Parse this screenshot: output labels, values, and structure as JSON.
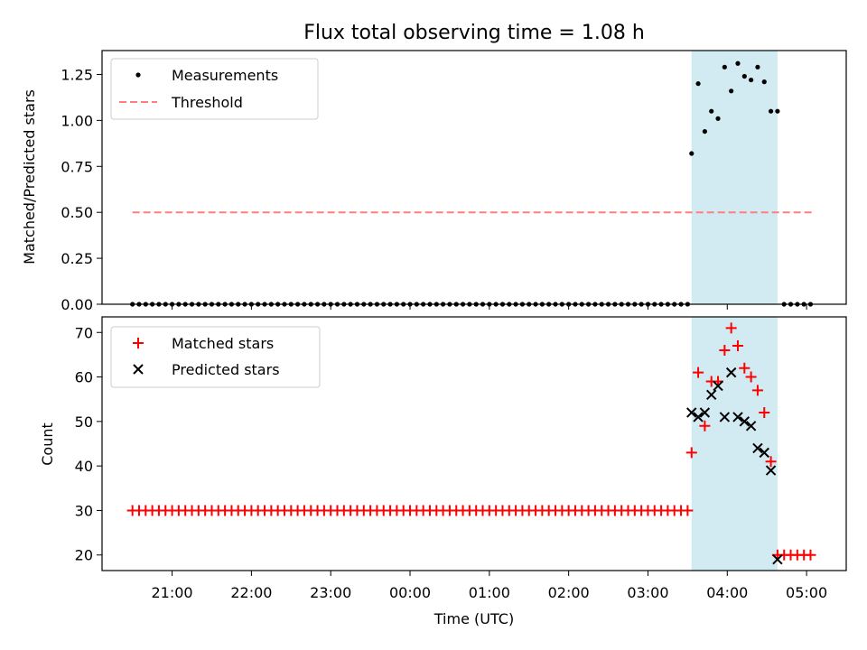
{
  "chart_data": [
    {
      "type": "scatter",
      "title": "Flux total observing time = 1.08 h",
      "xlabel": "",
      "ylabel": "Matched/Predicted stars",
      "ylim": [
        0.0,
        1.38
      ],
      "yticks": [
        "0.00",
        "0.25",
        "0.50",
        "0.75",
        "1.00",
        "1.25"
      ],
      "legend": "top-left",
      "highlight_span": {
        "start": "03:33",
        "end": "04:38",
        "color": "#add8e6"
      },
      "threshold": {
        "name": "Threshold",
        "value": 0.5,
        "x_start": "20:30",
        "x_end": "05:05",
        "color": "#ff7f7f",
        "style": "dashed"
      },
      "series": [
        {
          "name": "Measurements",
          "color": "#000000",
          "marker": "dot",
          "zero_run": {
            "start": "20:30",
            "end": "03:30",
            "step_minutes": 5,
            "value": 0.0
          },
          "points": [
            [
              "03:33",
              0.82
            ],
            [
              "03:38",
              1.2
            ],
            [
              "03:43",
              0.94
            ],
            [
              "03:48",
              1.05
            ],
            [
              "03:53",
              1.01
            ],
            [
              "03:58",
              1.29
            ],
            [
              "04:03",
              1.16
            ],
            [
              "04:08",
              1.31
            ],
            [
              "04:13",
              1.24
            ],
            [
              "04:18",
              1.22
            ],
            [
              "04:23",
              1.29
            ],
            [
              "04:28",
              1.21
            ],
            [
              "04:33",
              1.05
            ],
            [
              "04:38",
              1.05
            ],
            [
              "04:43",
              0.0
            ],
            [
              "04:48",
              0.0
            ],
            [
              "04:53",
              0.0
            ],
            [
              "04:58",
              0.0
            ],
            [
              "05:03",
              0.0
            ]
          ]
        }
      ]
    },
    {
      "type": "scatter",
      "title": "",
      "xlabel": "Time (UTC)",
      "ylabel": "Count",
      "ylim": [
        16.5,
        73.5
      ],
      "yticks": [
        "20",
        "30",
        "40",
        "50",
        "60",
        "70"
      ],
      "xlim": [
        "20:07",
        "05:30"
      ],
      "xticks": [
        "21:00",
        "22:00",
        "23:00",
        "00:00",
        "01:00",
        "02:00",
        "03:00",
        "04:00",
        "05:00"
      ],
      "legend": "top-left",
      "highlight_span": {
        "start": "03:33",
        "end": "04:38",
        "color": "#add8e6"
      },
      "series": [
        {
          "name": "Matched stars",
          "color": "#ff0000",
          "marker": "plus",
          "constant_run": {
            "start": "20:30",
            "end": "03:30",
            "step_minutes": 5,
            "value": 30
          },
          "points": [
            [
              "03:33",
              43
            ],
            [
              "03:38",
              61
            ],
            [
              "03:43",
              49
            ],
            [
              "03:48",
              59
            ],
            [
              "03:53",
              59
            ],
            [
              "03:58",
              66
            ],
            [
              "04:03",
              71
            ],
            [
              "04:08",
              67
            ],
            [
              "04:13",
              62
            ],
            [
              "04:18",
              60
            ],
            [
              "04:23",
              57
            ],
            [
              "04:28",
              52
            ],
            [
              "04:33",
              41
            ],
            [
              "04:38",
              20
            ],
            [
              "04:43",
              20
            ],
            [
              "04:48",
              20
            ],
            [
              "04:53",
              20
            ],
            [
              "04:58",
              20
            ],
            [
              "05:03",
              20
            ]
          ]
        },
        {
          "name": "Predicted stars",
          "color": "#000000",
          "marker": "x",
          "points": [
            [
              "03:33",
              52
            ],
            [
              "03:38",
              51
            ],
            [
              "03:43",
              52
            ],
            [
              "03:48",
              56
            ],
            [
              "03:53",
              58
            ],
            [
              "03:58",
              51
            ],
            [
              "04:03",
              61
            ],
            [
              "04:08",
              51
            ],
            [
              "04:13",
              50
            ],
            [
              "04:18",
              49
            ],
            [
              "04:23",
              44
            ],
            [
              "04:28",
              43
            ],
            [
              "04:33",
              39
            ],
            [
              "04:38",
              19
            ]
          ]
        }
      ]
    }
  ]
}
